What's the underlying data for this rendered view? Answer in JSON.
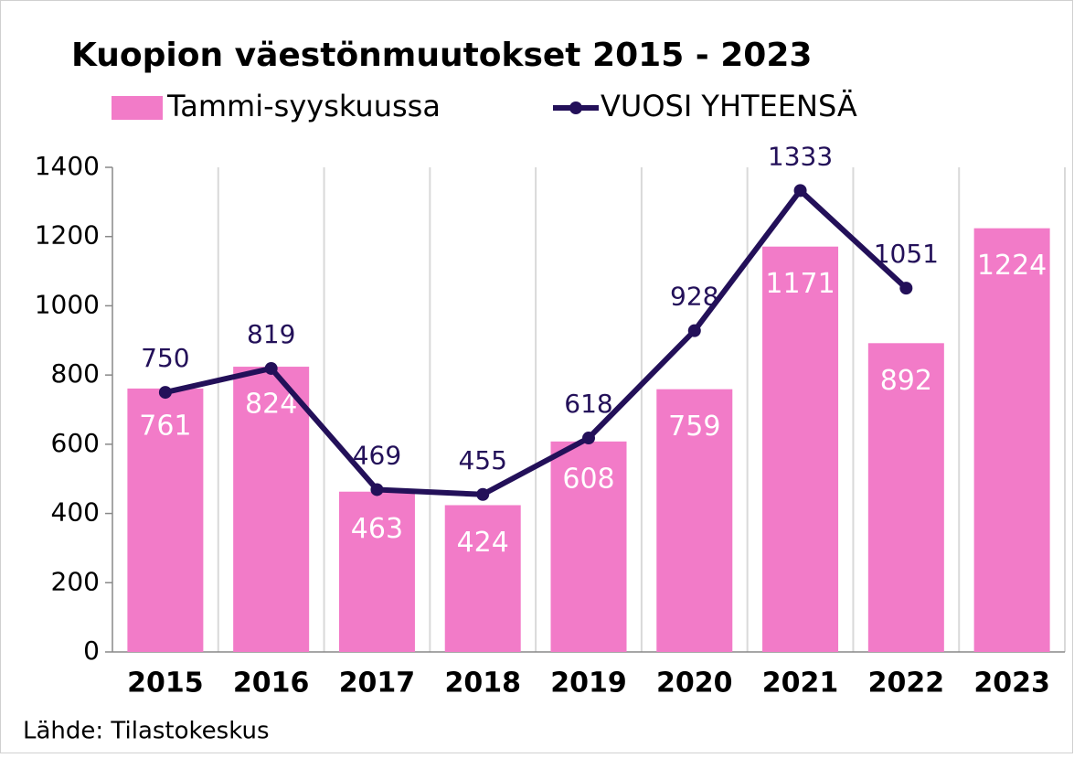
{
  "chart_data": {
    "type": "bar_line",
    "title": "Kuopion väestönmuutokset 2015 - 2023",
    "categories": [
      "2015",
      "2016",
      "2017",
      "2018",
      "2019",
      "2020",
      "2021",
      "2022",
      "2023"
    ],
    "series": [
      {
        "name": "Tammi-syyskuussa",
        "type": "bar",
        "color": "#f27bc8",
        "values": [
          761,
          824,
          463,
          424,
          608,
          759,
          1171,
          892,
          1224
        ]
      },
      {
        "name": "VUOSI YHTEENSÄ",
        "type": "line",
        "color": "#231059",
        "values": [
          750,
          819,
          469,
          455,
          618,
          928,
          1333,
          1051,
          null
        ]
      }
    ],
    "ylim": [
      0,
      1400
    ],
    "yticks": [
      0,
      200,
      400,
      600,
      800,
      1000,
      1200,
      1400
    ],
    "source": "Lähde: Tilastokeskus"
  }
}
